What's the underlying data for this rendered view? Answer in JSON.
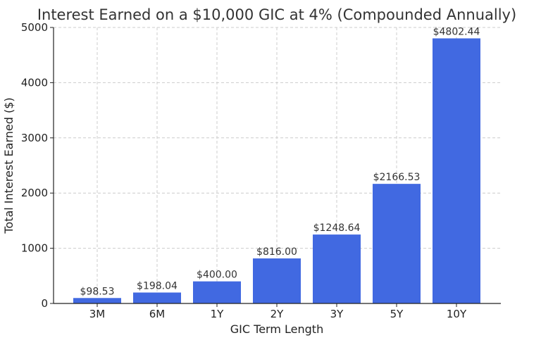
{
  "chart_data": {
    "type": "bar",
    "title": "Interest Earned on a $10,000 GIC at 4% (Compounded Annually)",
    "xlabel": "GIC Term Length",
    "ylabel": "Total Interest Earned ($)",
    "categories": [
      "3M",
      "6M",
      "1Y",
      "2Y",
      "3Y",
      "5Y",
      "10Y"
    ],
    "values": [
      98.53,
      198.04,
      400.0,
      816.0,
      1248.64,
      2166.53,
      4802.44
    ],
    "data_labels": [
      "$98.53",
      "$198.04",
      "$400.00",
      "$816.00",
      "$1248.64",
      "$2166.53",
      "$4802.44"
    ],
    "ylim": [
      0,
      5000
    ],
    "yticks": [
      0,
      1000,
      2000,
      3000,
      4000,
      5000
    ],
    "grid": true,
    "bar_color": "#4169E1"
  }
}
